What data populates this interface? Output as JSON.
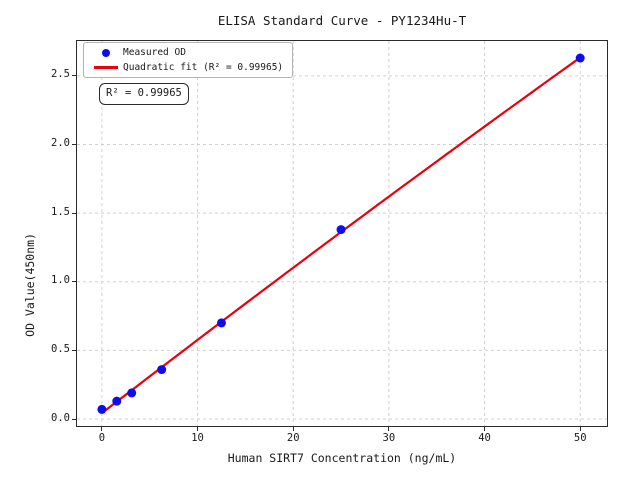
{
  "figure": {
    "title": "ELISA Standard Curve - PY1234Hu-T",
    "xlabel": "Human SIRT7 Concentration (ng/mL)",
    "ylabel": "OD Value(450nm)"
  },
  "legend": {
    "position": "upper left",
    "items": [
      {
        "label": "Measured OD",
        "marker": "dot",
        "color": "#0d0df0"
      },
      {
        "label": "Quadratic fit (R² = 0.99965)",
        "marker": "line",
        "color": "#e8000d"
      }
    ]
  },
  "annotation": {
    "r_squared_label": "R² = 0.99965"
  },
  "chart_data": {
    "type": "scatter",
    "title": "ELISA Standard Curve - PY1234Hu-T",
    "xlabel": "Human SIRT7 Concentration (ng/mL)",
    "ylabel": "OD Value(450nm)",
    "xlim": [
      -2.6,
      52.8
    ],
    "ylim": [
      -0.051,
      2.754
    ],
    "x_ticks": [
      0,
      10,
      20,
      30,
      40,
      50
    ],
    "y_ticks": [
      0,
      0.5,
      1,
      1.5,
      2,
      2.5
    ],
    "grid": true,
    "grid_style": "dashed",
    "grid_color": "#d0d0d0",
    "frame_color": "#2b2b2b",
    "legend_position": "upper left",
    "series": [
      {
        "name": "Measured OD",
        "type": "scatter",
        "color": "#0d0df0",
        "marker_size": 4.5,
        "x": [
          0,
          1.56,
          3.12,
          6.25,
          12.5,
          25,
          50
        ],
        "y": [
          0.07,
          0.13,
          0.19,
          0.36,
          0.7,
          1.38,
          2.63
        ]
      },
      {
        "name": "Quadratic fit (R² = 0.99965)",
        "type": "line",
        "color": "#e8000d",
        "line_width": 2.2,
        "fit_coefficients": {
          "a": 0.0425,
          "b": 0.05376,
          "c": -3.89e-05
        },
        "r_squared": 0.99965,
        "x_range": [
          0,
          50
        ]
      }
    ]
  }
}
